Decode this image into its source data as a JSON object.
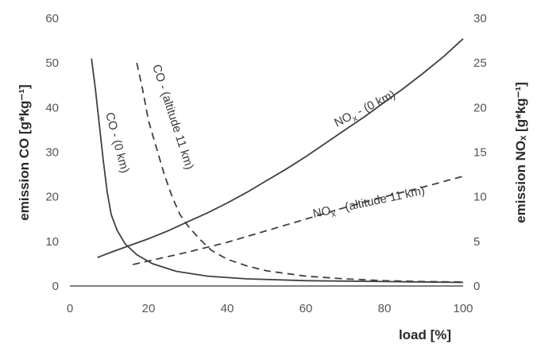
{
  "chart_data": {
    "type": "line",
    "xlabel": "load [%]",
    "ylabel_left": "emission CO [g*kg⁻¹]",
    "ylabel_right": "emission NOₓ [g*kg⁻¹]",
    "xlim": [
      0,
      100
    ],
    "ylim_left": [
      0,
      60
    ],
    "ylim_right": [
      0,
      30
    ],
    "x_ticks": [
      0,
      20,
      40,
      60,
      80,
      100
    ],
    "y_ticks_left": [
      0,
      10,
      20,
      30,
      40,
      50,
      60
    ],
    "y_ticks_right": [
      0,
      5,
      10,
      15,
      20,
      25,
      30
    ],
    "grid": false,
    "series": [
      {
        "name": "CO - (0 km)",
        "axis": "left",
        "style": "solid",
        "points": [
          [
            5.5,
            51
          ],
          [
            6.5,
            44
          ],
          [
            7.5,
            36
          ],
          [
            8.5,
            28
          ],
          [
            9.5,
            21
          ],
          [
            10.5,
            16
          ],
          [
            12,
            12.5
          ],
          [
            14,
            9.5
          ],
          [
            17,
            7
          ],
          [
            21,
            5
          ],
          [
            27,
            3.3
          ],
          [
            35,
            2.2
          ],
          [
            45,
            1.6
          ],
          [
            60,
            1.2
          ],
          [
            80,
            1.0
          ],
          [
            100,
            0.8
          ]
        ]
      },
      {
        "name": "CO - (altitude 11 km)",
        "axis": "left",
        "style": "dashed",
        "points": [
          [
            17,
            50
          ],
          [
            18.5,
            44
          ],
          [
            20,
            37
          ],
          [
            22,
            31
          ],
          [
            24,
            25
          ],
          [
            26,
            20
          ],
          [
            28,
            16
          ],
          [
            30,
            13.5
          ],
          [
            33,
            10.5
          ],
          [
            36,
            8
          ],
          [
            40,
            6
          ],
          [
            45,
            4.5
          ],
          [
            50,
            3.4
          ],
          [
            60,
            2.2
          ],
          [
            70,
            1.6
          ],
          [
            80,
            1.2
          ],
          [
            90,
            1.0
          ],
          [
            100,
            0.9
          ]
        ]
      },
      {
        "name": "NOₓ - (0 km)",
        "axis": "right",
        "style": "solid",
        "points": [
          [
            7,
            3.2
          ],
          [
            10,
            3.7
          ],
          [
            15,
            4.5
          ],
          [
            20,
            5.3
          ],
          [
            25,
            6.2
          ],
          [
            30,
            7.2
          ],
          [
            35,
            8.2
          ],
          [
            40,
            9.3
          ],
          [
            45,
            10.5
          ],
          [
            50,
            11.8
          ],
          [
            55,
            13.1
          ],
          [
            60,
            14.5
          ],
          [
            65,
            16.0
          ],
          [
            70,
            17.5
          ],
          [
            75,
            19.0
          ],
          [
            80,
            20.6
          ],
          [
            85,
            22.2
          ],
          [
            90,
            23.9
          ],
          [
            95,
            25.7
          ],
          [
            100,
            27.7
          ]
        ]
      },
      {
        "name": "NOₓ - (altitude 11 km)",
        "axis": "right",
        "style": "dashed",
        "points": [
          [
            16,
            2.4
          ],
          [
            20,
            2.8
          ],
          [
            25,
            3.3
          ],
          [
            30,
            3.8
          ],
          [
            40,
            4.9
          ],
          [
            50,
            6.2
          ],
          [
            60,
            7.5
          ],
          [
            70,
            8.8
          ],
          [
            80,
            10.0
          ],
          [
            90,
            11.1
          ],
          [
            100,
            12.3
          ]
        ]
      }
    ]
  },
  "annotations": {
    "co_0km": "CO - (0 km)",
    "co_11km": "CO - (altitude 11 km)",
    "nox_0km_prefix": "NO",
    "nox_0km_sub": "x",
    "nox_0km_suffix": " - (0 km)",
    "nox_11km_prefix": "NO",
    "nox_11km_sub": "x",
    "nox_11km_suffix": " - (altitude 11 km)"
  },
  "colors": {
    "line": "#404040",
    "axis": "#555555",
    "background": "#ffffff"
  }
}
